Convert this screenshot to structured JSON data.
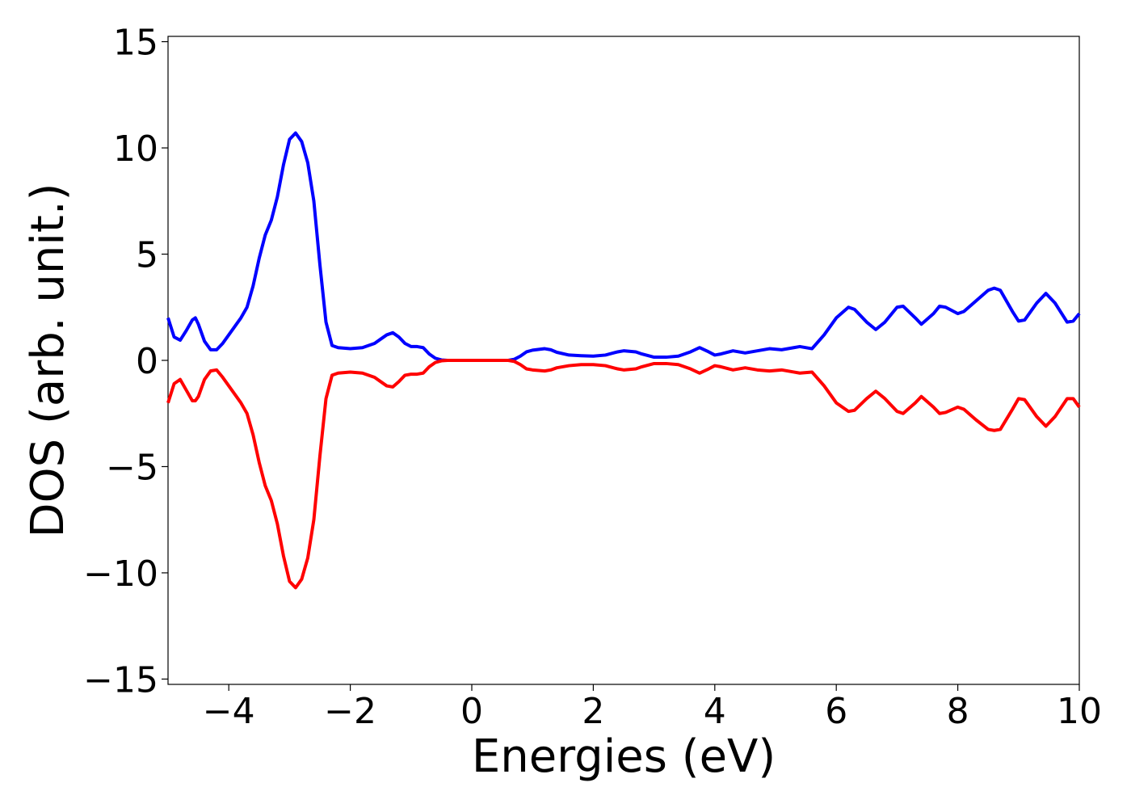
{
  "chart_data": {
    "type": "line",
    "x_label": "Energies (eV)",
    "y_label": "DOS (arb. unit.)",
    "x": [
      -5,
      -4.9,
      -4.8,
      -4.7,
      -4.6,
      -4.55,
      -4.5,
      -4.4,
      -4.3,
      -4.2,
      -4.1,
      -4.0,
      -3.9,
      -3.8,
      -3.7,
      -3.6,
      -3.5,
      -3.4,
      -3.3,
      -3.2,
      -3.1,
      -3.0,
      -2.9,
      -2.8,
      -2.7,
      -2.6,
      -2.5,
      -2.4,
      -2.3,
      -2.2,
      -2.0,
      -1.8,
      -1.6,
      -1.5,
      -1.4,
      -1.3,
      -1.2,
      -1.1,
      -1.0,
      -0.9,
      -0.8,
      -0.7,
      -0.6,
      -0.5,
      -0.4,
      0,
      0.6,
      0.7,
      0.8,
      0.9,
      1.0,
      1.2,
      1.3,
      1.4,
      1.6,
      1.8,
      2.0,
      2.2,
      2.4,
      2.5,
      2.7,
      2.8,
      3.0,
      3.2,
      3.4,
      3.6,
      3.75,
      3.9,
      4.0,
      4.1,
      4.3,
      4.5,
      4.7,
      4.9,
      5.1,
      5.3,
      5.4,
      5.6,
      5.8,
      6.0,
      6.2,
      6.3,
      6.5,
      6.65,
      6.8,
      7.0,
      7.1,
      7.3,
      7.4,
      7.6,
      7.7,
      7.8,
      8.0,
      8.1,
      8.3,
      8.5,
      8.6,
      8.7,
      8.9,
      9.0,
      9.1,
      9.3,
      9.45,
      9.6,
      9.8,
      9.9,
      10.0
    ],
    "series": [
      {
        "color": "#0000ff",
        "values": [
          2.0,
          1.1,
          0.95,
          1.4,
          1.9,
          2.0,
          1.7,
          0.9,
          0.5,
          0.5,
          0.8,
          1.2,
          1.6,
          2.0,
          2.5,
          3.5,
          4.8,
          5.9,
          6.6,
          7.7,
          9.2,
          10.4,
          10.7,
          10.3,
          9.3,
          7.5,
          4.5,
          1.8,
          0.7,
          0.6,
          0.55,
          0.6,
          0.8,
          1.0,
          1.2,
          1.3,
          1.1,
          0.8,
          0.65,
          0.65,
          0.6,
          0.3,
          0.1,
          0.02,
          0,
          0,
          0,
          0.05,
          0.2,
          0.4,
          0.48,
          0.55,
          0.5,
          0.38,
          0.25,
          0.22,
          0.2,
          0.25,
          0.4,
          0.45,
          0.4,
          0.3,
          0.15,
          0.15,
          0.2,
          0.4,
          0.6,
          0.4,
          0.25,
          0.3,
          0.45,
          0.35,
          0.45,
          0.55,
          0.5,
          0.6,
          0.65,
          0.55,
          1.2,
          2.0,
          2.5,
          2.4,
          1.8,
          1.45,
          1.8,
          2.5,
          2.55,
          2.0,
          1.7,
          2.2,
          2.55,
          2.5,
          2.2,
          2.3,
          2.8,
          3.3,
          3.4,
          3.3,
          2.3,
          1.85,
          1.9,
          2.7,
          3.15,
          2.7,
          1.8,
          1.85,
          2.2
        ]
      },
      {
        "color": "#ff0000",
        "values": [
          -2.0,
          -1.1,
          -0.9,
          -1.4,
          -1.9,
          -1.9,
          -1.7,
          -0.9,
          -0.5,
          -0.45,
          -0.8,
          -1.2,
          -1.6,
          -2.0,
          -2.5,
          -3.5,
          -4.8,
          -5.9,
          -6.6,
          -7.7,
          -9.2,
          -10.4,
          -10.7,
          -10.3,
          -9.3,
          -7.5,
          -4.5,
          -1.8,
          -0.7,
          -0.6,
          -0.55,
          -0.6,
          -0.8,
          -1.0,
          -1.2,
          -1.25,
          -1.0,
          -0.7,
          -0.65,
          -0.65,
          -0.6,
          -0.3,
          -0.1,
          -0.02,
          0,
          0,
          0,
          -0.05,
          -0.2,
          -0.4,
          -0.45,
          -0.5,
          -0.45,
          -0.35,
          -0.25,
          -0.2,
          -0.2,
          -0.25,
          -0.4,
          -0.45,
          -0.4,
          -0.3,
          -0.15,
          -0.15,
          -0.2,
          -0.4,
          -0.6,
          -0.4,
          -0.25,
          -0.3,
          -0.45,
          -0.35,
          -0.45,
          -0.5,
          -0.45,
          -0.55,
          -0.6,
          -0.55,
          -1.2,
          -2.0,
          -2.4,
          -2.35,
          -1.8,
          -1.45,
          -1.8,
          -2.4,
          -2.5,
          -2.0,
          -1.7,
          -2.2,
          -2.5,
          -2.45,
          -2.2,
          -2.3,
          -2.8,
          -3.25,
          -3.3,
          -3.25,
          -2.3,
          -1.8,
          -1.85,
          -2.65,
          -3.1,
          -2.65,
          -1.8,
          -1.8,
          -2.2
        ]
      }
    ],
    "xlim": [
      -5,
      10
    ],
    "xticks": [
      {
        "value": -4,
        "label": "−4"
      },
      {
        "value": -2,
        "label": "−2"
      },
      0,
      2,
      4,
      6,
      8,
      10
    ],
    "ylim": [
      -15.25,
      15.25
    ],
    "yticks": [
      {
        "value": -15,
        "label": "−15"
      },
      {
        "value": -10,
        "label": "−10"
      },
      {
        "value": -5,
        "label": "−5"
      },
      0,
      5,
      10,
      15
    ]
  }
}
